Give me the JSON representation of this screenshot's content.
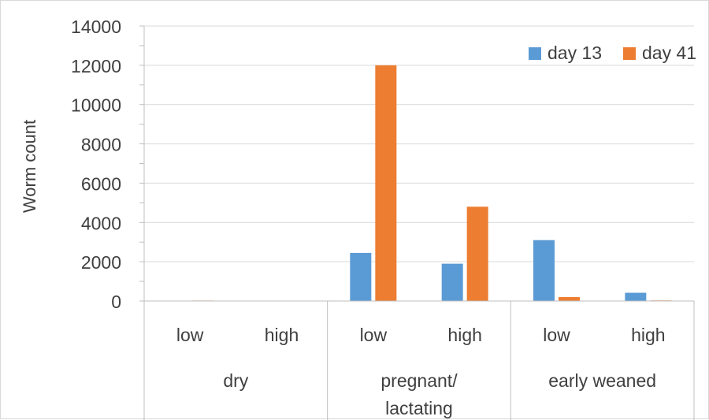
{
  "chart_data": {
    "type": "bar",
    "title": "",
    "ylabel": "Worm count",
    "xlabel": "",
    "ylim": [
      0,
      14000
    ],
    "yticks": [
      0,
      2000,
      4000,
      6000,
      8000,
      10000,
      12000,
      14000
    ],
    "grid": true,
    "legend_position": "top-right",
    "groups": [
      {
        "label": "dry",
        "label_lines": [
          "dry"
        ],
        "categories": [
          "low",
          "high"
        ]
      },
      {
        "label": "pregnant/ lactating",
        "label_lines": [
          "pregnant/",
          "lactating"
        ],
        "categories": [
          "low",
          "high"
        ]
      },
      {
        "label": "early weaned",
        "label_lines": [
          "early weaned"
        ],
        "categories": [
          "low",
          "high"
        ]
      }
    ],
    "series": [
      {
        "name": "day 13",
        "color": "#5b9bd5",
        "values": [
          20,
          15,
          2450,
          1900,
          3100,
          420
        ]
      },
      {
        "name": "day 41",
        "color": "#ed7d31",
        "values": [
          25,
          20,
          12000,
          4800,
          200,
          30
        ]
      }
    ]
  }
}
